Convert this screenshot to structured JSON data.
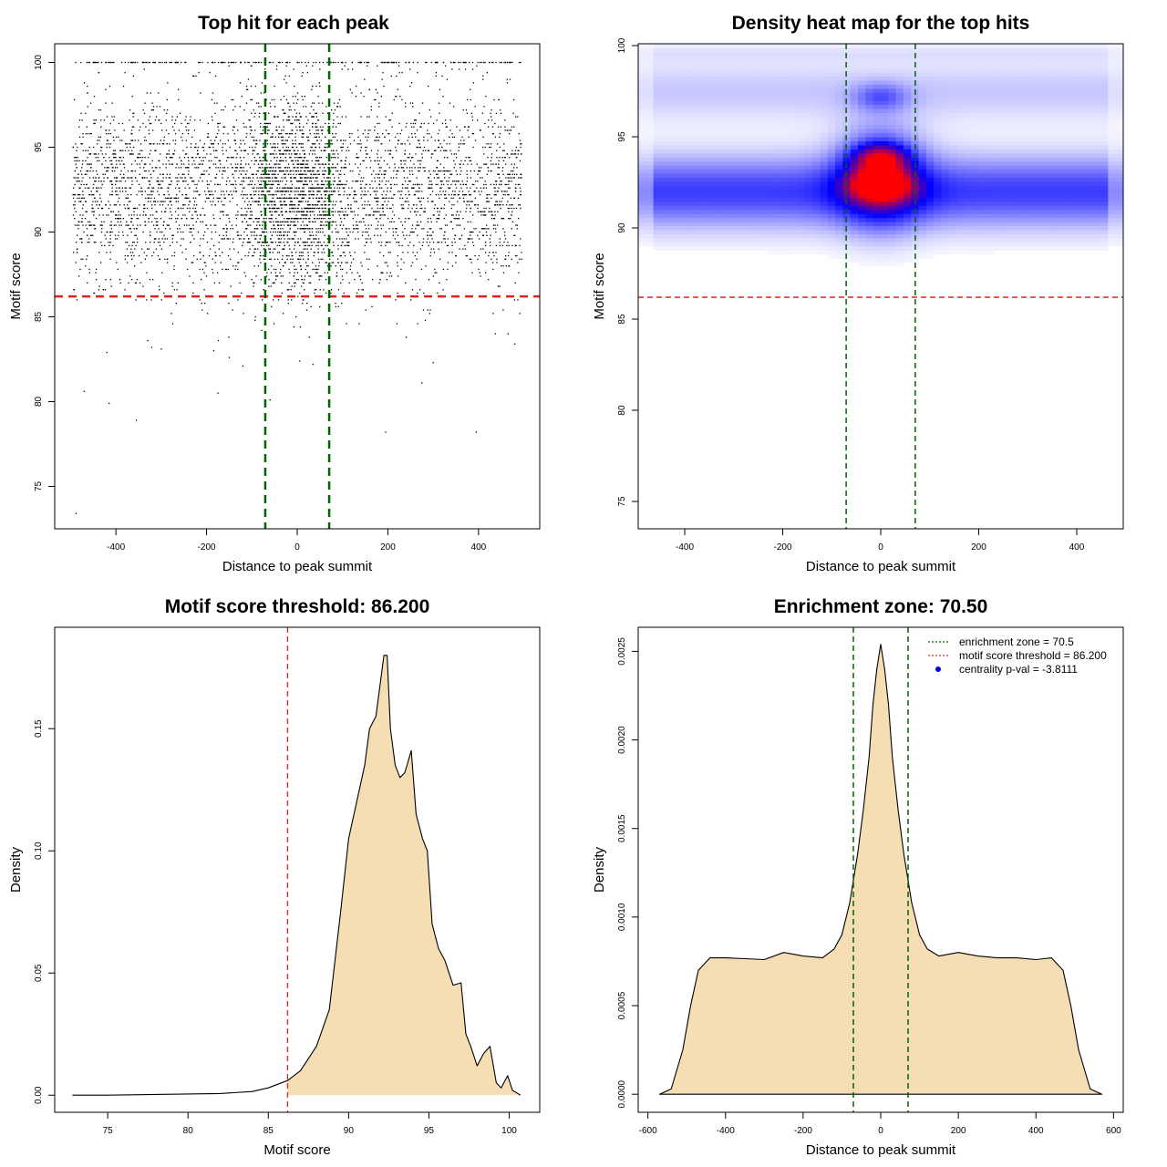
{
  "figure": {
    "colors": {
      "density_fill": "#F5DEB3",
      "threshold_line": "#DD2222",
      "zone_line": "#006400",
      "points": "#000000",
      "heat_low": "#FFFFFF",
      "heat_mid": "#0000FF",
      "heat_high": "#FF0000",
      "legend_point": "#0000CC"
    }
  },
  "chart_data": [
    {
      "id": "scatter",
      "type": "scatter",
      "title": "Top hit for each peak",
      "xlabel": "Distance to peak summit",
      "ylabel": "Motif score",
      "xlim": [
        -535,
        535
      ],
      "ylim": [
        72.5,
        101.1
      ],
      "xticks": [
        -400,
        -200,
        0,
        200,
        400
      ],
      "xtick_labels": [
        "-400",
        "-200",
        "0",
        "200",
        "400"
      ],
      "yticks": [
        75,
        80,
        85,
        90,
        95,
        100
      ],
      "ytick_labels": [
        "75",
        "80",
        "85",
        "90",
        "95",
        "100"
      ],
      "hlines": [
        86.2
      ],
      "vlines": [
        -70.5,
        70.5
      ],
      "x_range": [
        -495,
        495
      ],
      "score_distribution": {
        "mean": 92.4,
        "sd": 2.9,
        "max": 100
      },
      "outliers": [
        {
          "x": -488,
          "y": 73.4
        },
        {
          "x": -470,
          "y": 80.6
        },
        {
          "x": -415,
          "y": 79.9
        },
        {
          "x": -355,
          "y": 78.9
        },
        {
          "x": -175,
          "y": 80.5
        },
        {
          "x": 195,
          "y": 78.2
        },
        {
          "x": 395,
          "y": 78.2
        },
        {
          "x": 275,
          "y": 81.1
        },
        {
          "x": -120,
          "y": 82.1
        },
        {
          "x": -60,
          "y": 80.1
        },
        {
          "x": 480,
          "y": 83.4
        },
        {
          "x": 300,
          "y": 82.3
        },
        {
          "x": -420,
          "y": 82.9
        },
        {
          "x": -300,
          "y": 83.1
        },
        {
          "x": -150,
          "y": 82.6
        }
      ]
    },
    {
      "id": "heatmap",
      "type": "heatmap",
      "title": "Density heat map for the top hits",
      "xlabel": "Distance to peak summit",
      "ylabel": "Motif score",
      "xlim": [
        -495,
        495
      ],
      "ylim": [
        73.5,
        100.1
      ],
      "xticks": [
        -400,
        -200,
        0,
        200,
        400
      ],
      "xtick_labels": [
        "-400",
        "-200",
        "0",
        "200",
        "400"
      ],
      "yticks": [
        75,
        80,
        85,
        90,
        95,
        100
      ],
      "ytick_labels": [
        "75",
        "80",
        "85",
        "90",
        "95",
        "100"
      ],
      "hlines": [
        86.2
      ],
      "vlines": [
        -70.5,
        70.5
      ],
      "hot_spots": [
        {
          "x": 0,
          "y": 92.4,
          "intensity": 1.0
        },
        {
          "x": 0,
          "y": 93.9,
          "intensity": 0.8
        },
        {
          "x": 0,
          "y": 97.2,
          "intensity": 0.45
        }
      ]
    },
    {
      "id": "score_density",
      "type": "area",
      "title": "Motif score threshold: 86.200",
      "xlabel": "Motif score",
      "ylabel": "Density",
      "xlim": [
        71.7,
        101.9
      ],
      "ylim": [
        -0.007,
        0.1915
      ],
      "xticks": [
        75,
        80,
        85,
        90,
        95,
        100
      ],
      "xtick_labels": [
        "75",
        "80",
        "85",
        "90",
        "95",
        "100"
      ],
      "yticks": [
        0,
        0.05,
        0.1,
        0.15
      ],
      "ytick_labels": [
        "0.00",
        "0.05",
        "0.10",
        "0.15"
      ],
      "vlines": [
        86.2
      ],
      "fill_from": 86.2,
      "x": [
        72.8,
        75,
        78,
        80,
        82,
        84,
        85,
        85.8,
        86.2,
        87,
        88,
        88.8,
        89.5,
        90,
        90.5,
        91,
        91.3,
        91.7,
        92,
        92.2,
        92.4,
        92.6,
        92.9,
        93.2,
        93.5,
        93.9,
        94.2,
        94.6,
        94.9,
        95.2,
        95.6,
        96,
        96.5,
        97,
        97.3,
        97.6,
        98,
        98.4,
        98.8,
        99.2,
        99.5,
        99.9,
        100.2,
        100.7
      ],
      "y": [
        0,
        0,
        0.0003,
        0.0005,
        0.0007,
        0.0015,
        0.003,
        0.005,
        0.006,
        0.01,
        0.02,
        0.035,
        0.075,
        0.105,
        0.12,
        0.135,
        0.15,
        0.155,
        0.17,
        0.18,
        0.18,
        0.15,
        0.135,
        0.13,
        0.132,
        0.141,
        0.115,
        0.105,
        0.1,
        0.07,
        0.06,
        0.055,
        0.045,
        0.046,
        0.025,
        0.02,
        0.012,
        0.017,
        0.02,
        0.005,
        0.003,
        0.008,
        0.002,
        0
      ],
      "legend": []
    },
    {
      "id": "distance_density",
      "type": "area",
      "title": "Enrichment zone: 70.50",
      "xlabel": "Distance to peak summit",
      "ylabel": "Density",
      "xlim": [
        -625,
        625
      ],
      "ylim": [
        -0.000102,
        0.002636
      ],
      "xticks": [
        -600,
        -400,
        -200,
        0,
        200,
        400,
        600
      ],
      "xtick_labels": [
        "-600",
        "-400",
        "-200",
        "0",
        "200",
        "400",
        "600"
      ],
      "yticks": [
        0,
        0.0005,
        0.001,
        0.0015,
        0.002,
        0.0025
      ],
      "ytick_labels": [
        "0.0000",
        "0.0005",
        "0.0010",
        "0.0015",
        "0.0020",
        "0.0025"
      ],
      "vlines": [
        -70.5,
        70.5
      ],
      "x": [
        -570,
        -540,
        -510,
        -490,
        -470,
        -440,
        -400,
        -350,
        -300,
        -250,
        -200,
        -150,
        -120,
        -100,
        -80,
        -60,
        -45,
        -30,
        -20,
        -10,
        0,
        10,
        20,
        30,
        45,
        60,
        80,
        100,
        120,
        150,
        200,
        250,
        300,
        350,
        400,
        440,
        470,
        490,
        510,
        540,
        570
      ],
      "y": [
        0,
        3e-05,
        0.00025,
        0.0005,
        0.0007,
        0.00077,
        0.00077,
        0.000765,
        0.00076,
        0.0008,
        0.00078,
        0.00077,
        0.00082,
        0.0009,
        0.00108,
        0.00135,
        0.0016,
        0.0019,
        0.0022,
        0.0024,
        0.00254,
        0.0024,
        0.0022,
        0.0019,
        0.0016,
        0.00135,
        0.00108,
        0.0009,
        0.00082,
        0.00078,
        0.0008,
        0.00078,
        0.00077,
        0.00077,
        0.00076,
        0.00077,
        0.0007,
        0.0005,
        0.00025,
        3e-05,
        0
      ],
      "legend": [
        {
          "label": "enrichment zone = 70.5",
          "style": "dotted-line",
          "color": "#006400"
        },
        {
          "label": "motif score threshold = 86.200",
          "style": "dotted-line",
          "color": "#DD2222"
        },
        {
          "label": "centrality p-val = -3.8111",
          "style": "point",
          "color": "#0000CC"
        }
      ],
      "legend_position": "top-right"
    }
  ]
}
